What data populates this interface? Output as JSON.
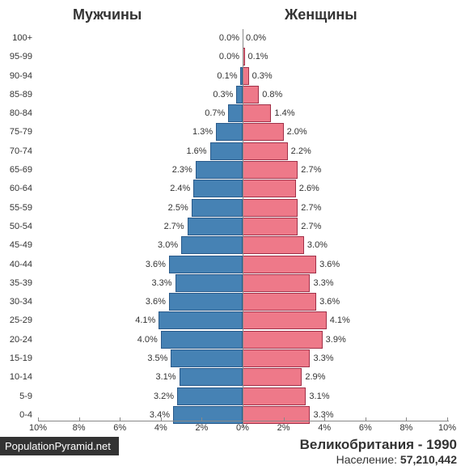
{
  "chart": {
    "type": "population-pyramid",
    "male_label": "Мужчины",
    "female_label": "Женщины",
    "male_color": "#4682b4",
    "male_border": "#2a5a8a",
    "female_color": "#ee7989",
    "female_border": "#a03048",
    "background_color": "#ffffff",
    "axis_color": "#888888",
    "text_color": "#333333",
    "label_fontsize": 11,
    "header_fontsize": 18,
    "axis": {
      "max_pct": 10,
      "tick_step": 2,
      "ticks_left": [
        "10%",
        "8%",
        "6%",
        "4%",
        "2%"
      ],
      "center_tick": "0%",
      "ticks_right": [
        "2%",
        "4%",
        "6%",
        "8%",
        "10%"
      ]
    },
    "age_groups": [
      {
        "label": "100+",
        "male": 0.0,
        "female": 0.0
      },
      {
        "label": "95-99",
        "male": 0.0,
        "female": 0.1
      },
      {
        "label": "90-94",
        "male": 0.1,
        "female": 0.3
      },
      {
        "label": "85-89",
        "male": 0.3,
        "female": 0.8
      },
      {
        "label": "80-84",
        "male": 0.7,
        "female": 1.4
      },
      {
        "label": "75-79",
        "male": 1.3,
        "female": 2.0
      },
      {
        "label": "70-74",
        "male": 1.6,
        "female": 2.2
      },
      {
        "label": "65-69",
        "male": 2.3,
        "female": 2.7
      },
      {
        "label": "60-64",
        "male": 2.4,
        "female": 2.6
      },
      {
        "label": "55-59",
        "male": 2.5,
        "female": 2.7
      },
      {
        "label": "50-54",
        "male": 2.7,
        "female": 2.7
      },
      {
        "label": "45-49",
        "male": 3.0,
        "female": 3.0
      },
      {
        "label": "40-44",
        "male": 3.6,
        "female": 3.6
      },
      {
        "label": "35-39",
        "male": 3.3,
        "female": 3.3
      },
      {
        "label": "30-34",
        "male": 3.6,
        "female": 3.6
      },
      {
        "label": "25-29",
        "male": 4.1,
        "female": 4.1
      },
      {
        "label": "20-24",
        "male": 4.0,
        "female": 3.9
      },
      {
        "label": "15-19",
        "male": 3.5,
        "female": 3.3
      },
      {
        "label": "10-14",
        "male": 3.1,
        "female": 2.9
      },
      {
        "label": "5-9",
        "male": 3.2,
        "female": 3.1
      },
      {
        "label": "0-4",
        "male": 3.4,
        "female": 3.3
      }
    ]
  },
  "footer": {
    "title": "Великобритания - 1990",
    "population_label": "Население: ",
    "population_value": "57,210,442"
  },
  "source": "PopulationPyramid.net"
}
